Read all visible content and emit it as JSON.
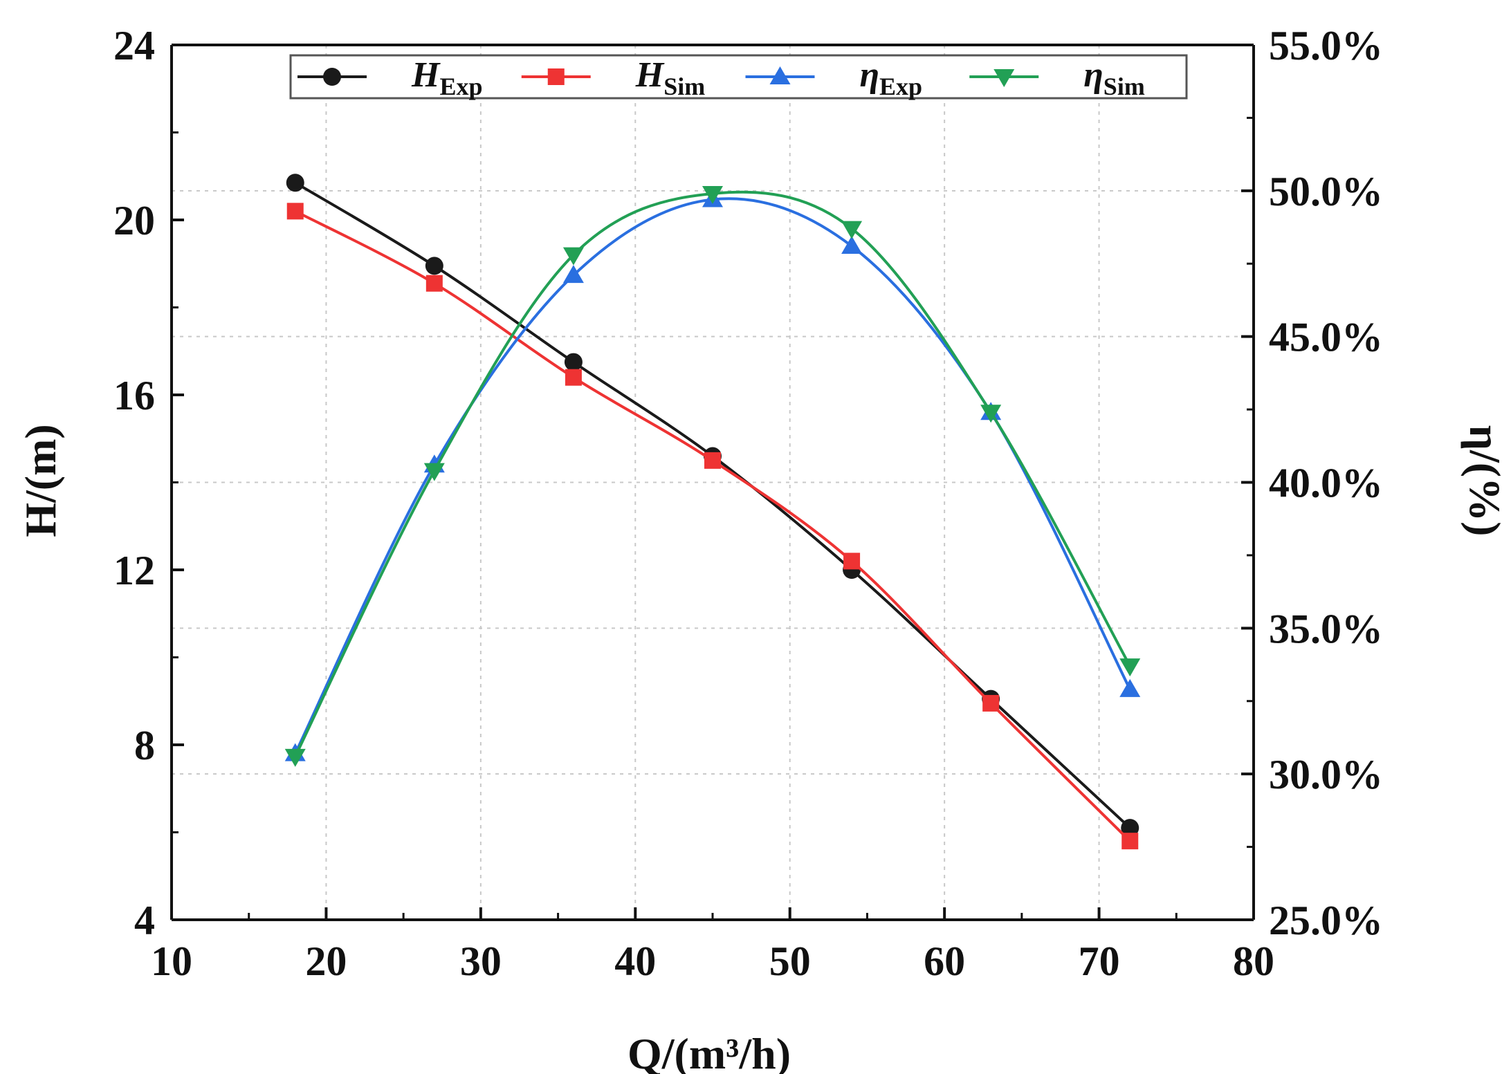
{
  "chart_data": {
    "type": "line",
    "x": [
      18,
      27,
      36,
      45,
      54,
      63,
      72
    ],
    "series": [
      {
        "id": "h_exp",
        "name": "H",
        "sub": "Exp",
        "axis": "left",
        "color": "#1a1a1a",
        "marker": "circle",
        "values": [
          20.85,
          18.95,
          16.75,
          14.6,
          12.0,
          9.05,
          6.1
        ]
      },
      {
        "id": "h_sim",
        "name": "H",
        "sub": "Sim",
        "axis": "left",
        "color": "#ee3333",
        "marker": "square",
        "values": [
          20.2,
          18.55,
          16.4,
          14.5,
          12.2,
          8.95,
          5.8
        ]
      },
      {
        "id": "eta_exp",
        "name": "η",
        "sub": "Exp",
        "axis": "right",
        "color": "#2a6fe0",
        "marker": "triangle-up",
        "values": [
          30.7,
          40.6,
          47.1,
          49.7,
          48.1,
          42.4,
          32.9
        ]
      },
      {
        "id": "eta_sim",
        "name": "η",
        "sub": "Sim",
        "axis": "right",
        "color": "#22a055",
        "marker": "triangle-down",
        "values": [
          30.6,
          40.4,
          47.8,
          49.9,
          48.7,
          42.4,
          33.7
        ]
      }
    ],
    "xlabel": "Q/(m³/h)",
    "ylabel_left": "H/(m)",
    "ylabel_right": "η/(%)",
    "xlim": [
      10,
      80
    ],
    "ylim_left": [
      4,
      24
    ],
    "ylim_right": [
      25.0,
      55.0
    ],
    "x_ticks": [
      "10",
      "20",
      "30",
      "40",
      "50",
      "60",
      "70",
      "80"
    ],
    "y_ticks_left": [
      "4",
      "8",
      "12",
      "16",
      "20",
      "24"
    ],
    "y_ticks_right": [
      "25.0%",
      "30.0%",
      "35.0%",
      "40.0%",
      "45.0%",
      "50.0%",
      "55.0%"
    ],
    "grid": true,
    "legend_position": "top"
  }
}
